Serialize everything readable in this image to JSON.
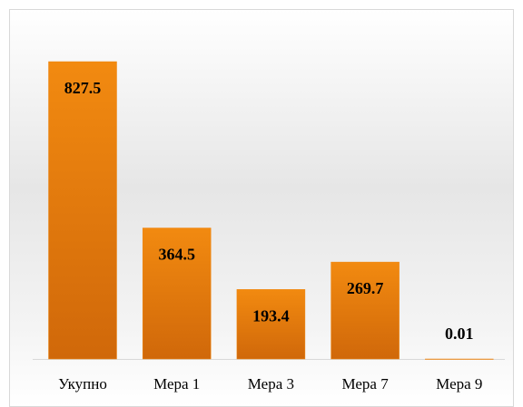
{
  "chart_data": {
    "type": "bar",
    "categories": [
      "Укупно",
      "Мера 1",
      "Мера 3",
      "Мера 7",
      "Мера 9"
    ],
    "values": [
      827.5,
      364.5,
      193.4,
      269.7,
      0.01
    ],
    "color": "#ee8510"
  }
}
